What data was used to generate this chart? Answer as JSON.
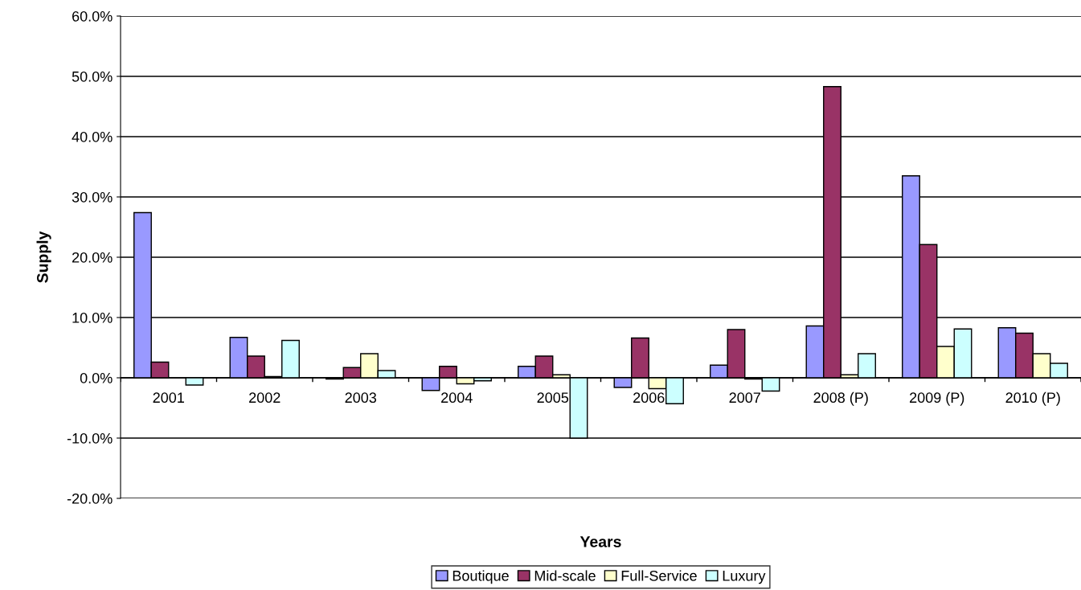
{
  "chart_data": {
    "type": "bar",
    "xlabel": "Years",
    "ylabel": "Supply",
    "categories": [
      "2001",
      "2002",
      "2003",
      "2004",
      "2005",
      "2006",
      "2007",
      "2008 (P)",
      "2009 (P)",
      "2010 (P)"
    ],
    "series": [
      {
        "name": "Boutique",
        "color": "#9999ff",
        "values": [
          27.4,
          6.7,
          -0.2,
          -2.1,
          1.9,
          -1.6,
          2.1,
          8.6,
          33.5,
          8.3
        ]
      },
      {
        "name": "Mid-scale",
        "color": "#993366",
        "values": [
          2.6,
          3.6,
          1.7,
          1.9,
          3.6,
          6.6,
          8.0,
          48.3,
          22.1,
          7.4
        ]
      },
      {
        "name": "Full-Service",
        "color": "#ffffcc",
        "values": [
          null,
          0.2,
          4.0,
          -1.0,
          0.5,
          -1.8,
          -0.2,
          0.5,
          5.2,
          4.0
        ]
      },
      {
        "name": "Luxury",
        "color": "#ccffff",
        "values": [
          -1.2,
          6.2,
          1.2,
          -0.5,
          -10.0,
          -4.3,
          -2.2,
          4.0,
          8.1,
          2.4
        ]
      }
    ],
    "ylim": [
      -20,
      60
    ],
    "yticks": [
      {
        "value": -20,
        "label": "-20.0%"
      },
      {
        "value": -10,
        "label": "-10.0%"
      },
      {
        "value": 0,
        "label": "0.0%"
      },
      {
        "value": 10,
        "label": "10.0%"
      },
      {
        "value": 20,
        "label": "20.0%"
      },
      {
        "value": 30,
        "label": "30.0%"
      },
      {
        "value": 40,
        "label": "40.0%"
      },
      {
        "value": 50,
        "label": "50.0%"
      },
      {
        "value": 60,
        "label": "60.0%"
      }
    ],
    "grid": "y",
    "legend": "bottom"
  }
}
